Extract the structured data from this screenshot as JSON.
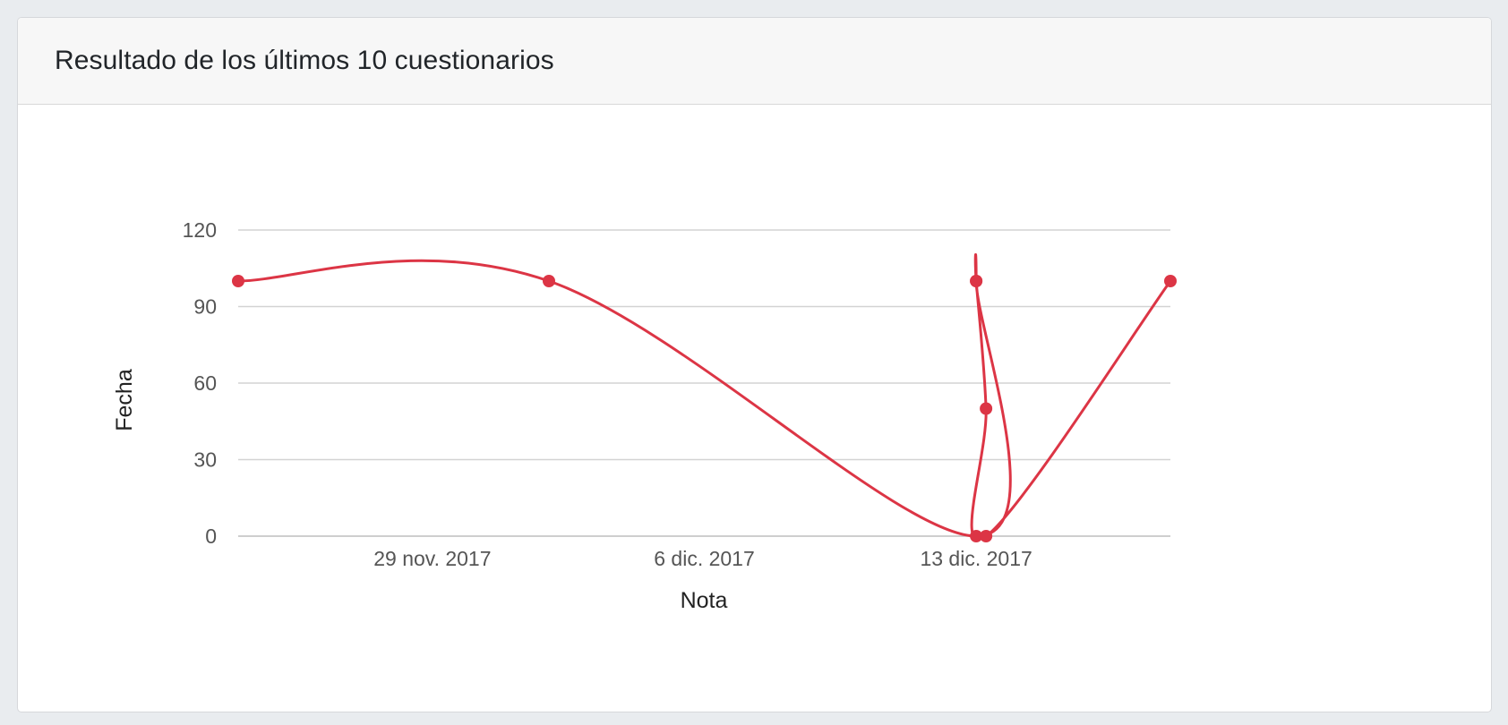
{
  "card": {
    "title": "Resultado de los últimos 10 cuestionarios"
  },
  "chart_data": {
    "type": "line",
    "xlabel": "Nota",
    "ylabel": "Fecha",
    "x_ticks": [
      {
        "date": "2017-11-29",
        "label": "29 nov. 2017"
      },
      {
        "date": "2017-12-06",
        "label": "6 dic. 2017"
      },
      {
        "date": "2017-12-13",
        "label": "13 dic. 2017"
      }
    ],
    "y_ticks": [
      0,
      30,
      60,
      90,
      120
    ],
    "xlim": [
      "2017-11-24",
      "2017-12-18"
    ],
    "ylim": [
      0,
      120
    ],
    "grid": true,
    "legend": "none",
    "series": [
      {
        "color": "#dc3545",
        "smooth": true,
        "points": [
          {
            "x": "2017-11-24",
            "y": 100
          },
          {
            "x": "2017-12-02",
            "y": 100
          },
          {
            "x": "2017-12-13",
            "y": 0
          },
          {
            "x": "2017-12-13",
            "y": 100
          },
          {
            "x": "2017-12-13",
            "y": 100
          },
          {
            "x": "2017-12-13",
            "y": 50
          },
          {
            "x": "2017-12-13",
            "y": 0
          },
          {
            "x": "2017-12-18",
            "y": 100
          }
        ]
      }
    ]
  }
}
